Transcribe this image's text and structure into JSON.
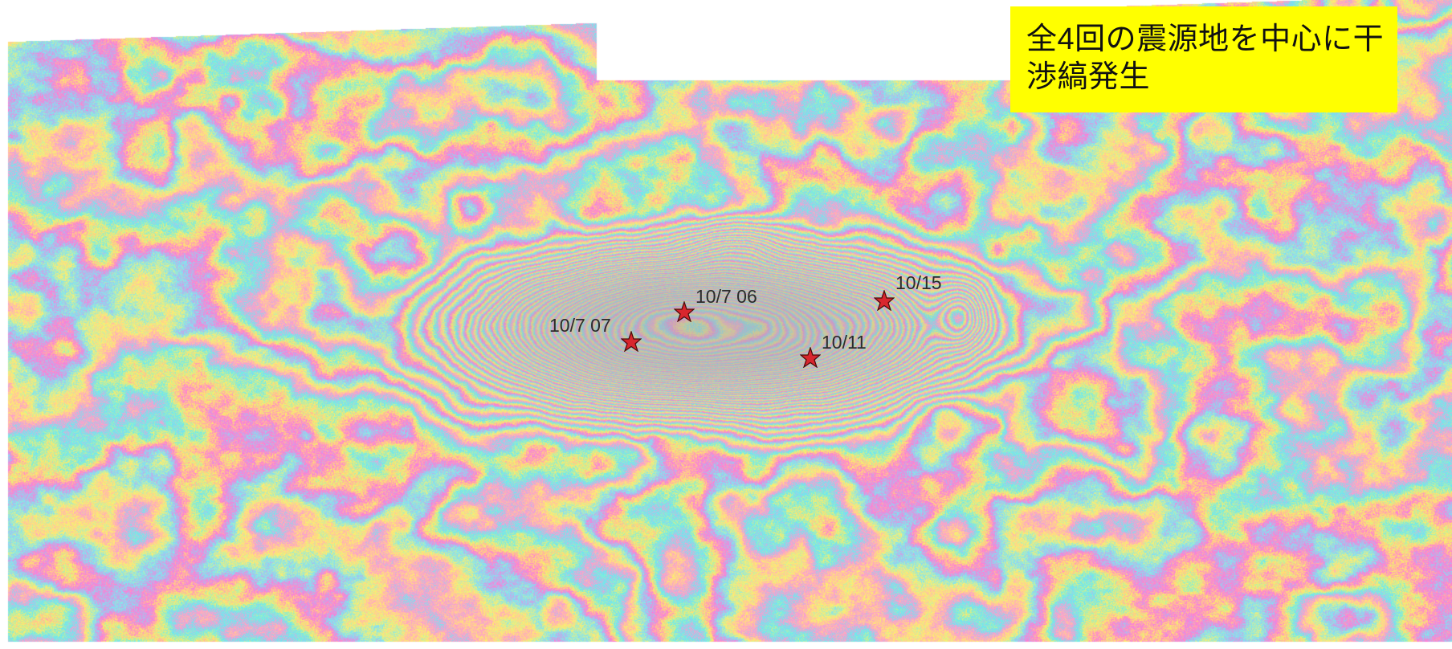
{
  "map": {
    "description_kind": "InSAR interferogram",
    "fringe_palette": [
      "#ff7ad9",
      "#ffee66",
      "#66ecf2",
      "#ff9ad0",
      "#fff06a",
      "#7be6f5"
    ],
    "background_color": "#ffffff"
  },
  "callout": {
    "text": "全4回の震源地を中心に干渉縞発生",
    "background": "#ffff00"
  },
  "epicenters": [
    {
      "id": "1007-06",
      "label": "10/7 06"
    },
    {
      "id": "1007-07",
      "label": "10/7 07"
    },
    {
      "id": "1011",
      "label": "10/11"
    },
    {
      "id": "1015",
      "label": "10/15"
    }
  ],
  "marker_style": {
    "icon": "star-icon",
    "fill": "#d8262e",
    "stroke": "#4a0a0a"
  }
}
